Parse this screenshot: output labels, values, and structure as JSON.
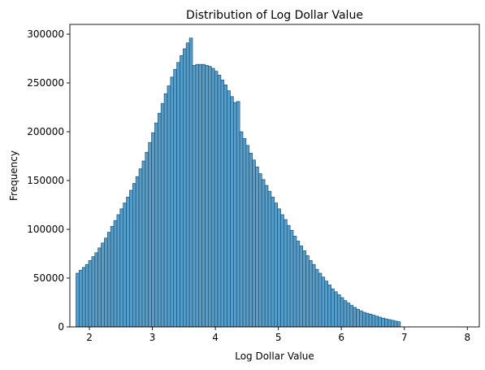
{
  "chart_data": {
    "type": "bar",
    "title": "Distribution of Log Dollar Value",
    "xlabel": "Log Dollar Value",
    "ylabel": "Frequency",
    "xlim": [
      1.69,
      8.19
    ],
    "ylim": [
      0,
      310000
    ],
    "xticks": [
      2,
      3,
      4,
      5,
      6,
      7,
      8
    ],
    "yticks": [
      0,
      50000,
      100000,
      150000,
      200000,
      250000,
      300000
    ],
    "grid": false,
    "bar_color": "#3d8fc4",
    "edge_color": "#2b4f66",
    "bin_start": 1.787,
    "bin_width": 0.05,
    "values": [
      55000,
      58000,
      61000,
      64000,
      68000,
      72000,
      76000,
      81000,
      86000,
      91000,
      97000,
      103000,
      109000,
      115000,
      121000,
      127000,
      133000,
      140000,
      147000,
      154000,
      162000,
      170000,
      179000,
      189000,
      199000,
      209000,
      219000,
      229000,
      239000,
      247000,
      256000,
      264000,
      271000,
      278000,
      285000,
      291000,
      296000,
      268000,
      269000,
      269000,
      269000,
      268000,
      267000,
      265000,
      262000,
      258000,
      253000,
      248000,
      242000,
      236000,
      230000,
      231000,
      200000,
      193000,
      186000,
      178000,
      171000,
      164000,
      157000,
      151000,
      145000,
      139000,
      133000,
      127000,
      121000,
      115000,
      110000,
      104000,
      99000,
      93000,
      88000,
      83000,
      78000,
      73000,
      68000,
      64000,
      59000,
      55000,
      51000,
      47000,
      43000,
      39000,
      36000,
      33000,
      30000,
      27000,
      24500,
      22000,
      20000,
      18000,
      16500,
      15000,
      14000,
      13000,
      12000,
      11000,
      10000,
      9000,
      8200,
      7500,
      6800,
      6000,
      5300
    ]
  }
}
